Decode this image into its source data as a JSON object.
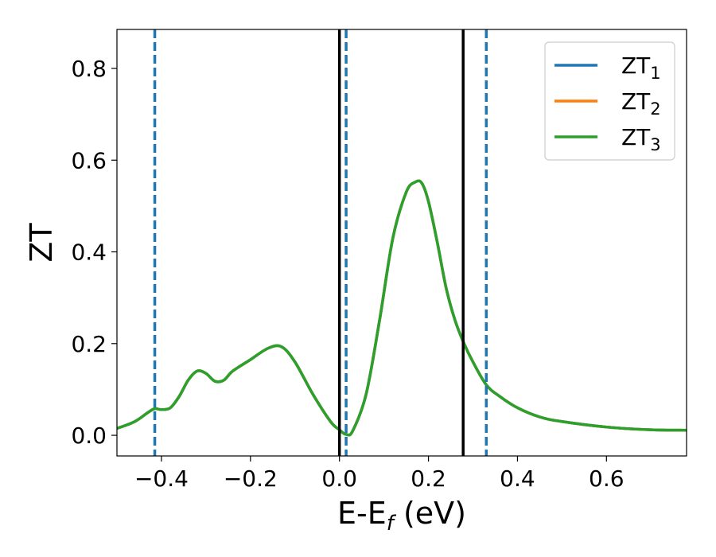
{
  "chart_data": {
    "type": "line",
    "title": "",
    "xlabel": "E-E",
    "xlabel_sub": "f",
    "xlabel_unit": " (eV)",
    "ylabel": "ZT",
    "xlim": [
      -0.5,
      0.78
    ],
    "ylim": [
      -0.045,
      0.885
    ],
    "xticks": [
      -0.4,
      -0.2,
      0.0,
      0.2,
      0.4,
      0.6
    ],
    "xtick_labels": [
      "−0.4",
      "−0.2",
      "0.0",
      "0.2",
      "0.4",
      "0.6"
    ],
    "yticks": [
      0.0,
      0.2,
      0.4,
      0.6,
      0.8
    ],
    "ytick_labels": [
      "0.0",
      "0.2",
      "0.4",
      "0.6",
      "0.8"
    ],
    "grid": false,
    "legend_position": "top-right",
    "x": [
      -0.5,
      -0.46,
      -0.43,
      -0.415,
      -0.4,
      -0.38,
      -0.36,
      -0.34,
      -0.32,
      -0.3,
      -0.28,
      -0.26,
      -0.24,
      -0.2,
      -0.16,
      -0.13,
      -0.1,
      -0.06,
      -0.02,
      0.0,
      0.015,
      0.03,
      0.06,
      0.09,
      0.12,
      0.15,
      0.17,
      0.185,
      0.2,
      0.22,
      0.24,
      0.26,
      0.28,
      0.3,
      0.33,
      0.36,
      0.4,
      0.45,
      0.5,
      0.6,
      0.7,
      0.78
    ],
    "series": [
      {
        "name": "ZT",
        "name_sub": "1",
        "color": "#1f77b4",
        "values": [
          0.015,
          0.03,
          0.05,
          0.058,
          0.056,
          0.06,
          0.085,
          0.12,
          0.14,
          0.135,
          0.118,
          0.12,
          0.14,
          0.165,
          0.19,
          0.193,
          0.16,
          0.09,
          0.03,
          0.012,
          0.002,
          0.01,
          0.09,
          0.25,
          0.43,
          0.53,
          0.552,
          0.55,
          0.51,
          0.42,
          0.32,
          0.25,
          0.2,
          0.16,
          0.11,
          0.085,
          0.06,
          0.04,
          0.03,
          0.018,
          0.012,
          0.011
        ]
      },
      {
        "name": "ZT",
        "name_sub": "2",
        "color": "#ff7f0e",
        "values": [
          0.015,
          0.03,
          0.05,
          0.058,
          0.056,
          0.06,
          0.085,
          0.12,
          0.14,
          0.135,
          0.118,
          0.12,
          0.14,
          0.165,
          0.19,
          0.193,
          0.16,
          0.09,
          0.03,
          0.012,
          0.002,
          0.01,
          0.09,
          0.25,
          0.43,
          0.53,
          0.552,
          0.55,
          0.51,
          0.42,
          0.32,
          0.25,
          0.2,
          0.16,
          0.11,
          0.085,
          0.06,
          0.04,
          0.03,
          0.018,
          0.012,
          0.011
        ]
      },
      {
        "name": "ZT",
        "name_sub": "3",
        "color": "#2ca02c",
        "values": [
          0.015,
          0.03,
          0.05,
          0.058,
          0.056,
          0.06,
          0.085,
          0.12,
          0.14,
          0.135,
          0.118,
          0.12,
          0.14,
          0.165,
          0.19,
          0.193,
          0.16,
          0.09,
          0.03,
          0.012,
          0.002,
          0.01,
          0.09,
          0.25,
          0.43,
          0.53,
          0.552,
          0.55,
          0.51,
          0.42,
          0.32,
          0.25,
          0.2,
          0.16,
          0.11,
          0.085,
          0.06,
          0.04,
          0.03,
          0.018,
          0.012,
          0.011
        ]
      }
    ],
    "vlines": [
      {
        "x": -0.415,
        "color": "#1f77b4",
        "style": "dashed"
      },
      {
        "x": 0.0,
        "color": "#000000",
        "style": "solid"
      },
      {
        "x": 0.015,
        "color": "#1f77b4",
        "style": "dashed"
      },
      {
        "x": 0.278,
        "color": "#000000",
        "style": "solid"
      },
      {
        "x": 0.33,
        "color": "#1f77b4",
        "style": "dashed"
      }
    ]
  }
}
